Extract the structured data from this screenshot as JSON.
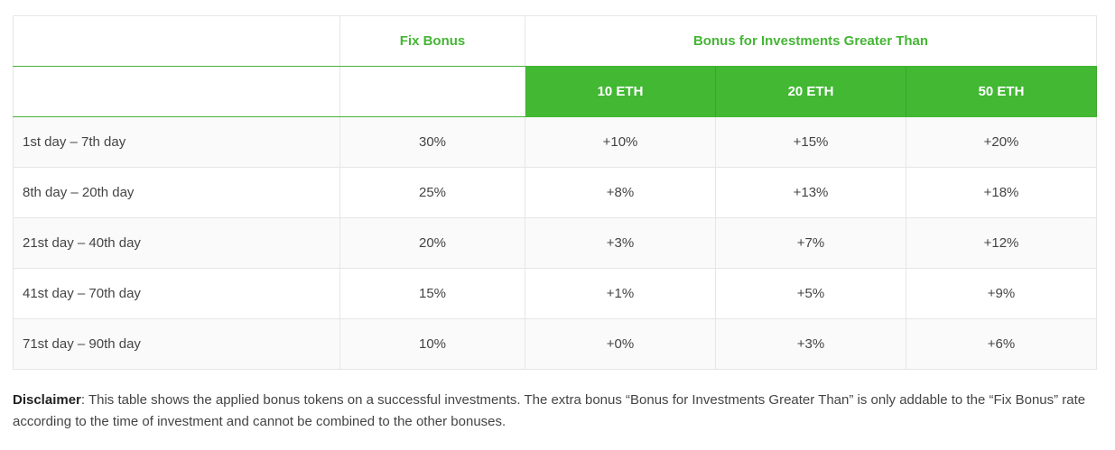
{
  "table": {
    "header": {
      "fix_bonus": "Fix Bonus",
      "greater_than": "Bonus for Investments Greater Than",
      "eth_levels": [
        "10 ETH",
        "20 ETH",
        "50 ETH"
      ]
    },
    "rows": [
      {
        "period": "1st day – 7th day",
        "fix": "30%",
        "b10": "+10%",
        "b20": "+15%",
        "b50": "+20%"
      },
      {
        "period": "8th day – 20th day",
        "fix": "25%",
        "b10": "+8%",
        "b20": "+13%",
        "b50": "+18%"
      },
      {
        "period": "21st day – 40th day",
        "fix": "20%",
        "b10": "+3%",
        "b20": "+7%",
        "b50": "+12%"
      },
      {
        "period": "41st day – 70th day",
        "fix": "15%",
        "b10": "+1%",
        "b20": "+5%",
        "b50": "+9%"
      },
      {
        "period": "71st day – 90th day",
        "fix": "10%",
        "b10": "+0%",
        "b20": "+3%",
        "b50": "+6%"
      }
    ]
  },
  "disclaimer": {
    "label": "Disclaimer",
    "text": ": This table shows the applied bonus tokens on a successful investments. The extra bonus “Bonus for Investments Greater Than” is only addable to the “Fix Bonus” rate according to the time of investment and cannot be combined to the other bonuses."
  },
  "colors": {
    "accent_green": "#42b833",
    "header_text_green": "#45b535",
    "body_text": "#444444"
  }
}
